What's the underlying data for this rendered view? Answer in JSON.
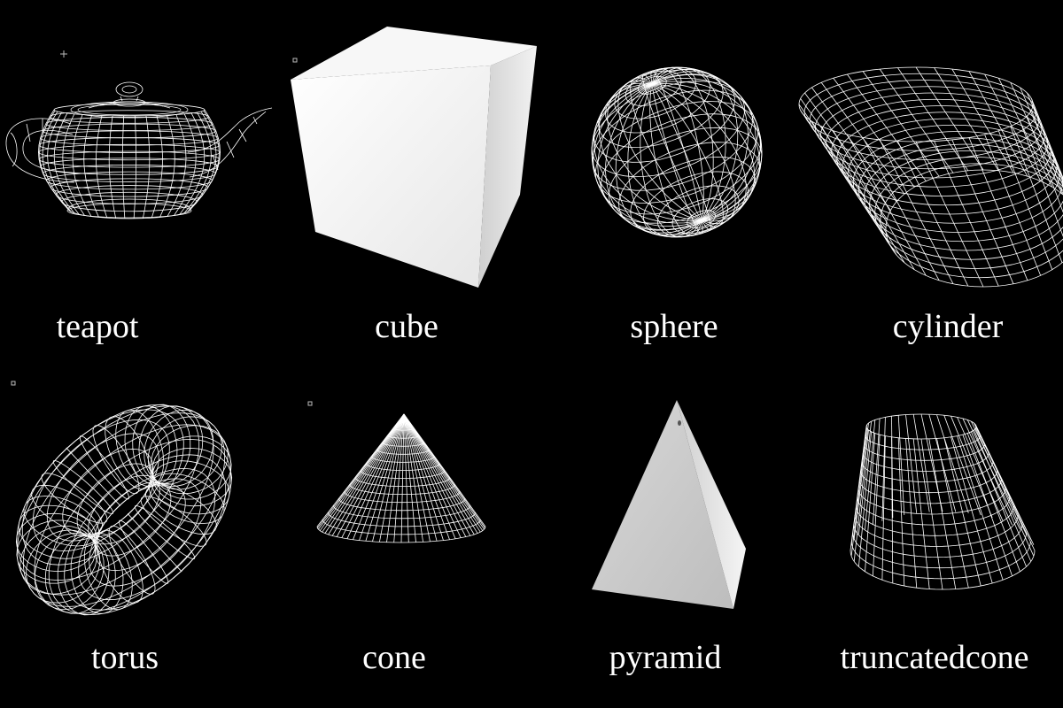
{
  "colors": {
    "background": "#000000",
    "wire": "#ffffff",
    "solid_light": "#ffffff",
    "solid_shade": "#bdbdbd"
  },
  "shapes": [
    {
      "id": "teapot",
      "label": "teapot",
      "render": "wireframe"
    },
    {
      "id": "cube",
      "label": "cube",
      "render": "solid"
    },
    {
      "id": "sphere",
      "label": "sphere",
      "render": "wireframe"
    },
    {
      "id": "cylinder",
      "label": "cylinder",
      "render": "wireframe"
    },
    {
      "id": "torus",
      "label": "torus",
      "render": "wireframe"
    },
    {
      "id": "cone",
      "label": "cone",
      "render": "wireframe"
    },
    {
      "id": "pyramid",
      "label": "pyramid",
      "render": "solid"
    },
    {
      "id": "truncatedcone",
      "label": "truncatedcone",
      "render": "wireframe"
    }
  ]
}
